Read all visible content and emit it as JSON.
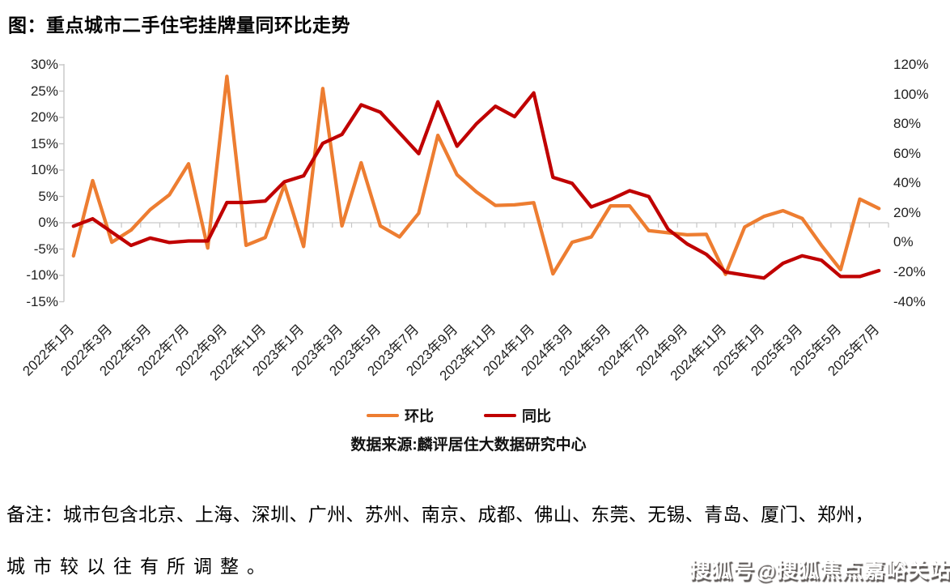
{
  "title": "图：重点城市二手住宅挂牌量同环比走势",
  "source": "数据来源:麟评居住大数据研究中心",
  "note_line1": "备注：城市包含北京、上海、深圳、广州、苏州、南京、成都、佛山、东莞、无锡、青岛、厦门、郑州，",
  "note_line2": "城市较以往有所调整。",
  "watermark": "搜狐号@搜狐焦点嘉峪关站",
  "legend": [
    {
      "label": "环比",
      "color": "#ED7D31"
    },
    {
      "label": "同比",
      "color": "#C00000"
    }
  ],
  "chart_data": {
    "type": "line",
    "title": "重点城市二手住宅挂牌量同环比走势",
    "grid": "zero-line-only",
    "legend_position": "bottom",
    "x": [
      "2022年1月",
      "2022年2月",
      "2022年3月",
      "2022年4月",
      "2022年5月",
      "2022年6月",
      "2022年7月",
      "2022年8月",
      "2022年9月",
      "2022年10月",
      "2022年11月",
      "2022年12月",
      "2023年1月",
      "2023年2月",
      "2023年3月",
      "2023年4月",
      "2023年5月",
      "2023年6月",
      "2023年7月",
      "2023年8月",
      "2023年9月",
      "2023年10月",
      "2023年11月",
      "2023年12月",
      "2024年1月",
      "2024年2月",
      "2024年3月",
      "2024年4月",
      "2024年5月",
      "2024年6月",
      "2024年7月",
      "2024年8月",
      "2024年9月",
      "2024年10月",
      "2024年11月",
      "2024年12月",
      "2025年1月",
      "2025年2月",
      "2025年3月",
      "2025年4月",
      "2025年5月",
      "2025年6月",
      "2025年7月"
    ],
    "x_tick_step": 2,
    "left_axis": {
      "min": -15,
      "max": 30,
      "unit": "%",
      "ticks": [
        30,
        25,
        20,
        15,
        10,
        5,
        0,
        -5,
        -10,
        -15
      ]
    },
    "right_axis": {
      "min": -40,
      "max": 120,
      "unit": "%",
      "ticks": [
        120,
        100,
        80,
        60,
        40,
        20,
        0,
        -20,
        -40
      ]
    },
    "series": [
      {
        "id": "huanbi",
        "name": "环比",
        "axis": "left",
        "color": "#ED7D31",
        "values": [
          -6.3,
          8.0,
          -3.7,
          -1.4,
          2.5,
          5.3,
          11.2,
          -4.8,
          27.8,
          -4.3,
          -2.8,
          7.2,
          -4.5,
          25.5,
          -0.6,
          11.4,
          -0.6,
          -2.7,
          1.8,
          16.6,
          9.1,
          5.9,
          3.3,
          3.4,
          3.8,
          -9.7,
          -3.7,
          -2.7,
          3.2,
          3.2,
          -1.5,
          -1.9,
          -2.3,
          -2.2,
          -9.8,
          -0.8,
          1.2,
          2.3,
          0.8,
          -4.3,
          -8.9,
          4.5,
          2.7
        ]
      },
      {
        "id": "tongbi",
        "name": "同比",
        "axis": "right",
        "color": "#C00000",
        "values": [
          11,
          16,
          7,
          -2,
          3,
          0,
          1,
          1,
          27,
          27,
          28,
          41,
          45,
          67,
          73,
          93,
          88,
          74,
          60,
          95,
          65,
          80,
          92,
          85,
          101,
          44,
          40,
          24,
          29,
          35,
          31,
          9,
          -1,
          -8,
          -20,
          -22,
          -24,
          -14,
          -9,
          -12,
          -23,
          -23,
          -19
        ]
      }
    ]
  }
}
